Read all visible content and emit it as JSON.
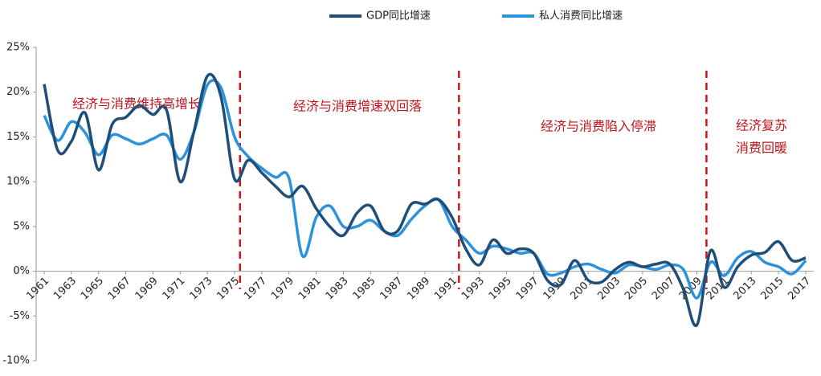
{
  "chart_data": {
    "type": "line",
    "x": [
      1961,
      1962,
      1963,
      1964,
      1965,
      1966,
      1967,
      1968,
      1969,
      1970,
      1971,
      1972,
      1973,
      1974,
      1975,
      1976,
      1977,
      1978,
      1979,
      1980,
      1981,
      1982,
      1983,
      1984,
      1985,
      1986,
      1987,
      1988,
      1989,
      1990,
      1991,
      1992,
      1993,
      1994,
      1995,
      1996,
      1997,
      1998,
      1999,
      2000,
      2001,
      2002,
      2003,
      2004,
      2005,
      2006,
      2007,
      2008,
      2009,
      2010,
      2011,
      2012,
      2013,
      2014,
      2015,
      2016,
      2017
    ],
    "series": [
      {
        "name": "GDP同比增速",
        "color": "#1f4e79",
        "values": [
          20.9,
          13.5,
          14.5,
          17.7,
          11.3,
          16.4,
          17.2,
          18.5,
          17.5,
          18.0,
          10.0,
          15.5,
          21.8,
          19.5,
          10.3,
          12.4,
          11.0,
          9.5,
          8.3,
          9.5,
          7.0,
          5.0,
          4.0,
          6.5,
          7.3,
          4.5,
          4.5,
          7.5,
          7.5,
          8.0,
          6.0,
          2.5,
          0.7,
          3.5,
          2.0,
          2.5,
          2.0,
          -1.0,
          -1.5,
          1.2,
          -1.0,
          -1.2,
          0.2,
          1.0,
          0.5,
          0.8,
          0.8,
          -2.0,
          -6.0,
          2.3,
          -1.8,
          0.5,
          1.8,
          2.1,
          3.3,
          1.2,
          1.5
        ]
      },
      {
        "name": "私人消费同比增速",
        "color": "#2b93dc",
        "values": [
          17.4,
          14.6,
          16.7,
          15.5,
          13.0,
          15.2,
          14.8,
          14.2,
          14.8,
          15.2,
          12.5,
          15.5,
          20.8,
          20.5,
          15.0,
          12.8,
          11.5,
          10.5,
          10.4,
          1.7,
          6.0,
          7.3,
          5.0,
          5.0,
          5.7,
          4.5,
          4.0,
          5.8,
          7.3,
          8.0,
          5.0,
          3.5,
          2.0,
          2.8,
          2.5,
          2.0,
          2.0,
          -0.3,
          -0.2,
          0.5,
          0.8,
          0.2,
          -0.2,
          0.7,
          0.5,
          0.2,
          0.7,
          0.2,
          -3.0,
          1.0,
          -0.5,
          1.5,
          2.2,
          1.0,
          0.5,
          -0.3,
          1.2
        ]
      }
    ],
    "xlim": [
      1961,
      2017
    ],
    "xticks": [
      1961,
      1963,
      1965,
      1967,
      1969,
      1971,
      1973,
      1975,
      1977,
      1979,
      1981,
      1983,
      1985,
      1987,
      1989,
      1991,
      1993,
      1995,
      1997,
      1999,
      2001,
      2003,
      2005,
      2007,
      2009,
      2011,
      2013,
      2015,
      2017
    ],
    "ylim": [
      -10,
      25
    ],
    "yticks": [
      {
        "value": -10,
        "label": "-10%"
      },
      {
        "value": -5,
        "label": "-5%"
      },
      {
        "value": 0,
        "label": "0%"
      },
      {
        "value": 5,
        "label": "5%"
      },
      {
        "value": 10,
        "label": "10%"
      },
      {
        "value": 15,
        "label": "15%"
      },
      {
        "value": 20,
        "label": "20%"
      },
      {
        "value": 25,
        "label": "25%"
      }
    ],
    "period_dividers": [
      1975.4,
      1991.5,
      2009.7
    ],
    "annotations": [
      "经济与消费维持高增长",
      "经济与消费增速双回落",
      "经济与消费陷入停滞",
      "经济复苏",
      "消费回暖"
    ],
    "legend": "top"
  }
}
